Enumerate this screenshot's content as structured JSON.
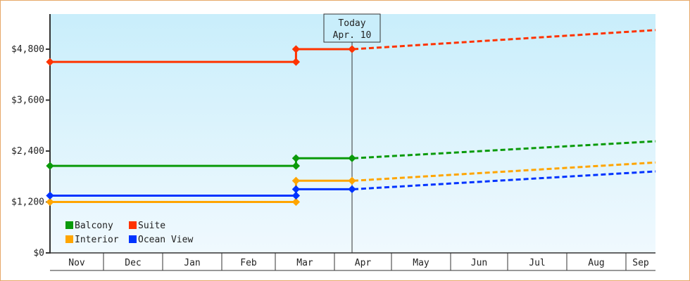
{
  "chart_data": {
    "type": "line",
    "title": "",
    "xlabel": "",
    "ylabel": "",
    "ylim": [
      0,
      5600
    ],
    "y_ticks": [
      "$0",
      "$1,200",
      "$2,400",
      "$3,600",
      "$4,800"
    ],
    "y_tick_values": [
      0,
      1200,
      2400,
      3600,
      4800
    ],
    "categories": [
      "Nov",
      "Dec",
      "Jan",
      "Feb",
      "Mar",
      "Apr",
      "May",
      "Jun",
      "Jul",
      "Aug",
      "Sep"
    ],
    "today_marker": {
      "line1": "Today",
      "line2": "Apr. 10"
    },
    "legend_position": "lower-left inside",
    "grid": false,
    "series": [
      {
        "name": "Balcony",
        "color": "#0a9a0a",
        "actual": [
          [
            0,
            2050
          ],
          [
            4.35,
            2050
          ],
          [
            4.35,
            2230
          ],
          [
            5.3,
            2230
          ]
        ],
        "projected": [
          [
            5.3,
            2230
          ],
          [
            11.0,
            2630
          ]
        ]
      },
      {
        "name": "Suite",
        "color": "#ff3300",
        "actual": [
          [
            0,
            4500
          ],
          [
            4.35,
            4500
          ],
          [
            4.35,
            4800
          ],
          [
            5.3,
            4800
          ]
        ],
        "projected": [
          [
            5.3,
            4800
          ],
          [
            11.0,
            5250
          ]
        ]
      },
      {
        "name": "Interior",
        "color": "#ffa500",
        "actual": [
          [
            0,
            1200
          ],
          [
            4.35,
            1200
          ],
          [
            4.35,
            1700
          ],
          [
            5.3,
            1700
          ]
        ],
        "projected": [
          [
            5.3,
            1700
          ],
          [
            11.0,
            2130
          ]
        ]
      },
      {
        "name": "Ocean View",
        "color": "#0033ff",
        "actual": [
          [
            0,
            1350
          ],
          [
            4.35,
            1350
          ],
          [
            4.35,
            1500
          ],
          [
            5.3,
            1500
          ]
        ],
        "projected": [
          [
            5.3,
            1500
          ],
          [
            11.0,
            1920
          ]
        ]
      }
    ]
  },
  "legend": {
    "items": [
      {
        "label": "Balcony",
        "color": "#0a9a0a"
      },
      {
        "label": "Suite",
        "color": "#ff3300"
      },
      {
        "label": "Interior",
        "color": "#ffa500"
      },
      {
        "label": "Ocean View",
        "color": "#0033ff"
      }
    ]
  },
  "colors": {
    "frame": "#e6a868",
    "plot_top": "#c9eefb",
    "plot_bottom": "#f0f9fe",
    "axis": "#333333"
  }
}
